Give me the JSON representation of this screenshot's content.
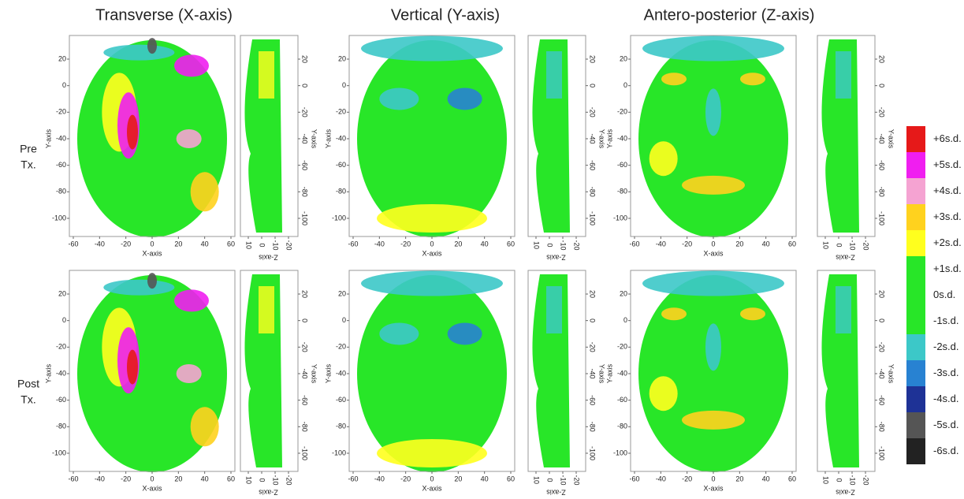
{
  "columns": [
    {
      "title": "Transverse (X-axis)"
    },
    {
      "title": "Vertical (Y-axis)"
    },
    {
      "title": "Antero-posterior (Z-axis)"
    }
  ],
  "rows": [
    {
      "label": [
        "Pre",
        "Tx."
      ]
    },
    {
      "label": [
        "Post",
        "Tx."
      ]
    }
  ],
  "front_axes": {
    "xlabel": "X-axis",
    "ylabel": "Y-axis",
    "xticks": [
      -60,
      -40,
      -20,
      0,
      20,
      40,
      60
    ],
    "yticks": [
      20,
      0,
      -20,
      -40,
      -60,
      -80,
      -100
    ]
  },
  "side_axes": {
    "xlabel": "Z-axis",
    "ylabel": "Y-axis",
    "xticks": [
      10,
      0,
      -10,
      -20
    ],
    "yticks": [
      20,
      0,
      -20,
      -40,
      -60,
      -80,
      -100
    ]
  },
  "legend": [
    {
      "label": "+6s.d.",
      "color": "#e61919"
    },
    {
      "label": "+5s.d.",
      "color": "#f01ef0"
    },
    {
      "label": "+4s.d.",
      "color": "#f5a3d2"
    },
    {
      "label": "+3s.d.",
      "color": "#ffd21e"
    },
    {
      "label": "+2s.d.",
      "color": "#ffff1e"
    },
    {
      "label": "+1s.d.",
      "color": "#28e628"
    },
    {
      "label": "0s.d.",
      "color": "#28e628"
    },
    {
      "label": "-1s.d.",
      "color": "#28e628"
    },
    {
      "label": "-2s.d.",
      "color": "#3cc8c8"
    },
    {
      "label": "-3s.d.",
      "color": "#2882d2"
    },
    {
      "label": "-4s.d.",
      "color": "#1e3296"
    },
    {
      "label": "-5s.d.",
      "color": "#555555"
    },
    {
      "label": "-6s.d.",
      "color": "#222222"
    }
  ]
}
